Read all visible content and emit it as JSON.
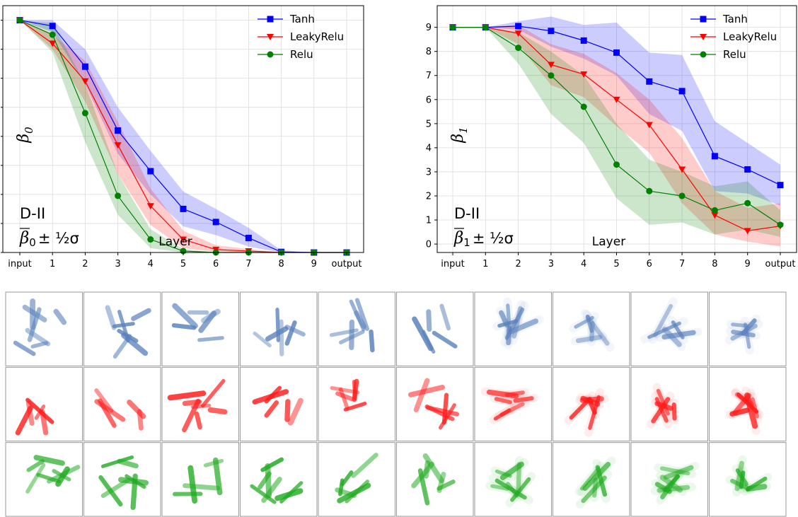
{
  "chart_data": [
    {
      "type": "line",
      "panel": "left",
      "categories": [
        "input",
        "1",
        "2",
        "3",
        "4",
        "5",
        "6",
        "7",
        "8",
        "9",
        "output"
      ],
      "xlabel": "Layer",
      "ylabel": "β0",
      "annotation": {
        "line1": "D-II",
        "stat_symbol": "β",
        "stat_sub": "0",
        "stat_suffix": "± ½σ"
      },
      "ylim": [
        0,
        8.5
      ],
      "yticks_visible": false,
      "grid": true,
      "legend_position": "top-right",
      "series": [
        {
          "name": "Tanh",
          "color": "#0000ff",
          "marker": "square",
          "values": [
            8,
            7.8,
            6.4,
            4.2,
            2.8,
            1.5,
            1.05,
            0.5,
            0.02,
            0,
            0
          ],
          "lower": [
            8,
            7.6,
            5.8,
            3.4,
            2.0,
            0.9,
            0.6,
            0.2,
            0,
            0,
            0
          ],
          "upper": [
            8,
            8.0,
            7.0,
            5.0,
            3.5,
            2.1,
            1.5,
            0.85,
            0.08,
            0,
            0
          ]
        },
        {
          "name": "LeakyRelu",
          "color": "#ff0000",
          "marker": "triangle-down",
          "values": [
            8,
            7.2,
            5.9,
            3.7,
            1.6,
            0.45,
            0.1,
            0.05,
            0,
            0,
            0
          ],
          "lower": [
            8,
            7.0,
            5.2,
            2.7,
            0.95,
            0.15,
            0.02,
            0,
            0,
            0,
            0
          ],
          "upper": [
            8,
            7.5,
            6.6,
            4.5,
            2.2,
            0.75,
            0.25,
            0.12,
            0,
            0,
            0
          ]
        },
        {
          "name": "Relu",
          "color": "#008000",
          "marker": "circle",
          "values": [
            8,
            7.5,
            4.8,
            1.95,
            0.45,
            0.05,
            0,
            0,
            0,
            0,
            0
          ],
          "lower": [
            8,
            6.9,
            3.8,
            1.3,
            0.15,
            0,
            0,
            0,
            0,
            0,
            0
          ],
          "upper": [
            8,
            7.9,
            5.8,
            2.7,
            0.8,
            0.12,
            0,
            0,
            0,
            0,
            0
          ]
        }
      ]
    },
    {
      "type": "line",
      "panel": "right",
      "categories": [
        "input",
        "1",
        "2",
        "3",
        "4",
        "5",
        "6",
        "7",
        "8",
        "9",
        "output"
      ],
      "xlabel": "Layer",
      "ylabel": "β1",
      "annotation": {
        "line1": "D-II",
        "stat_symbol": "β",
        "stat_sub": "1",
        "stat_suffix": "± ½σ"
      },
      "ylim": [
        -0.35,
        9.9
      ],
      "yticks": [
        0,
        1,
        2,
        3,
        4,
        5,
        6,
        7,
        8,
        9
      ],
      "grid": true,
      "legend_position": "top-right",
      "series": [
        {
          "name": "Tanh",
          "color": "#0000ff",
          "marker": "square",
          "values": [
            9,
            9,
            9.05,
            8.85,
            8.45,
            7.95,
            6.75,
            6.35,
            3.65,
            3.1,
            2.45
          ],
          "lower": [
            9,
            9,
            8.9,
            8.2,
            7.7,
            7.0,
            5.4,
            4.7,
            2.2,
            2.1,
            1.6
          ],
          "upper": [
            9,
            9,
            9.25,
            9.45,
            9.1,
            9.2,
            7.95,
            7.85,
            5.1,
            4.2,
            3.3
          ]
        },
        {
          "name": "LeakyRelu",
          "color": "#ff0000",
          "marker": "triangle-down",
          "values": [
            9,
            9,
            8.75,
            7.45,
            7.05,
            6.0,
            4.95,
            3.1,
            1.2,
            0.55,
            0.75
          ],
          "lower": [
            9,
            9,
            8.3,
            6.6,
            6.1,
            4.9,
            3.8,
            1.7,
            0.4,
            0.1,
            -0.1
          ],
          "upper": [
            9,
            9,
            9.1,
            8.3,
            7.9,
            7.1,
            6.0,
            4.4,
            2.2,
            1.5,
            1.7
          ]
        },
        {
          "name": "Relu",
          "color": "#008000",
          "marker": "circle",
          "values": [
            9,
            9,
            8.15,
            7.0,
            5.7,
            3.3,
            2.2,
            2.0,
            1.4,
            1.7,
            0.8
          ],
          "lower": [
            9,
            9,
            7.5,
            5.4,
            4.2,
            1.9,
            0.8,
            0.9,
            0.4,
            0.6,
            0.3
          ],
          "upper": [
            9,
            9,
            8.8,
            8.0,
            7.0,
            5.0,
            3.5,
            3.0,
            2.4,
            2.6,
            1.4
          ]
        }
      ]
    }
  ],
  "thumbnails": {
    "rows": [
      {
        "name": "tanh-row",
        "color": "#5a82bb"
      },
      {
        "name": "leakyrelu-row",
        "color": "#ff1a1a"
      },
      {
        "name": "relu-row",
        "color": "#1faa1f"
      }
    ],
    "columns": 10
  }
}
